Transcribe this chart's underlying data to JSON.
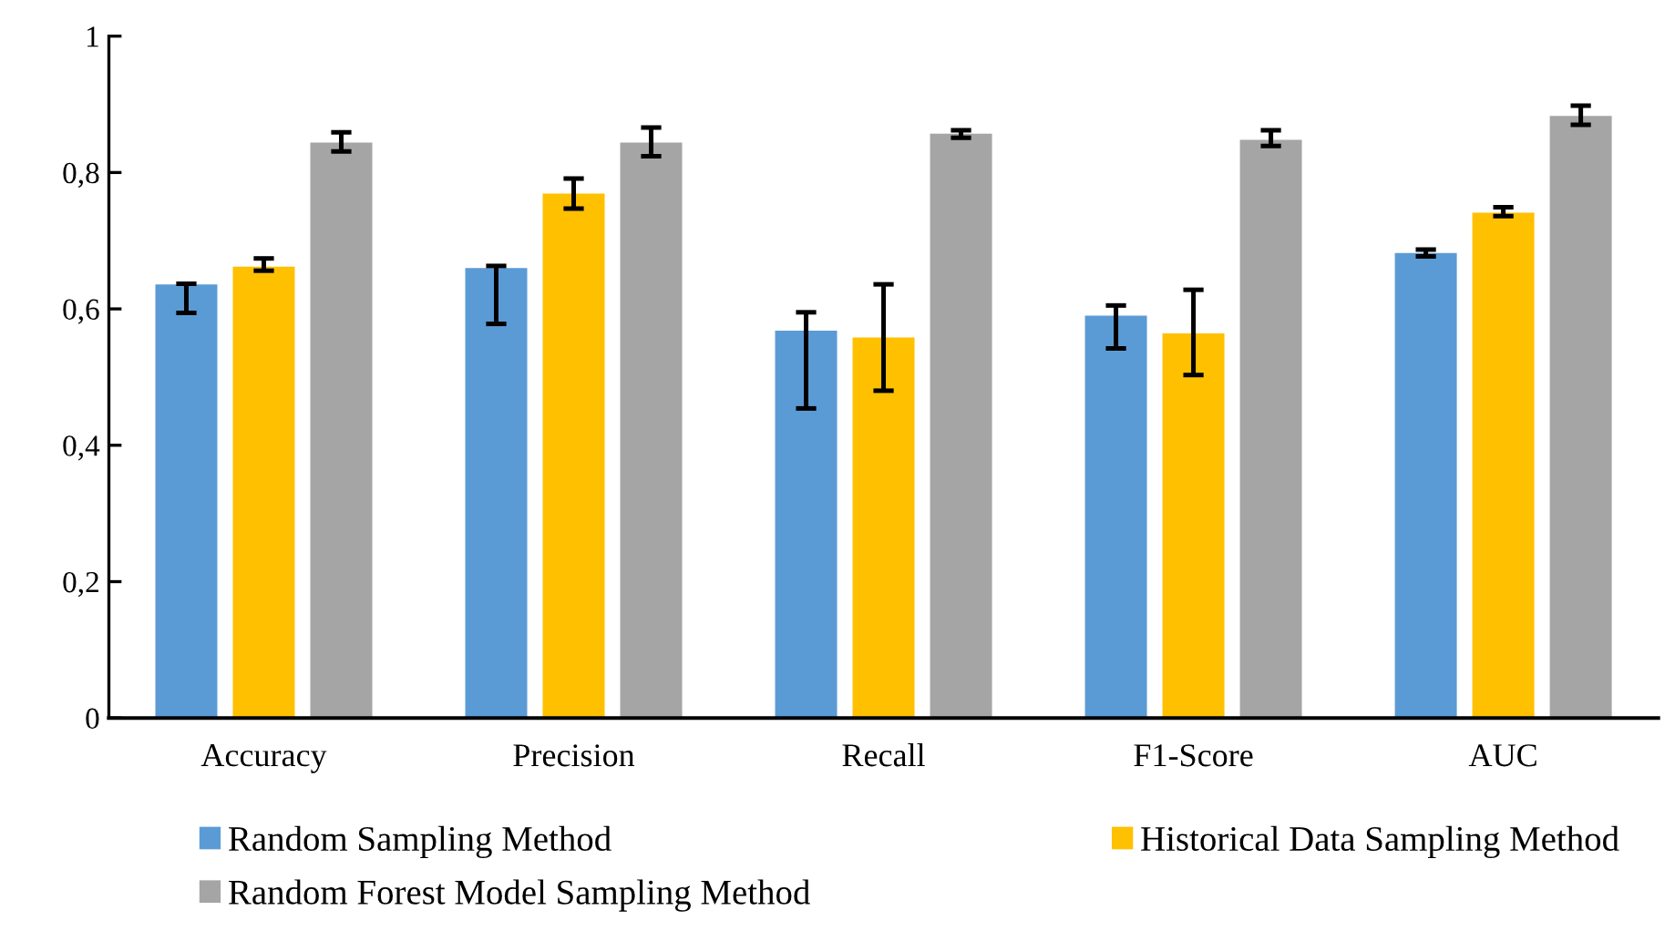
{
  "chart_data": {
    "type": "bar",
    "categories": [
      "Accuracy",
      "Precision",
      "Recall",
      "F1-Score",
      "AUC"
    ],
    "series": [
      {
        "name": "Random Sampling Method",
        "color": "#5b9bd5",
        "values": [
          0.636,
          0.66,
          0.568,
          0.59,
          0.682
        ],
        "errors": [
          [
            0.594,
            0.637
          ],
          [
            0.578,
            0.663
          ],
          [
            0.454,
            0.595
          ],
          [
            0.542,
            0.605
          ],
          [
            0.677,
            0.687
          ]
        ]
      },
      {
        "name": "Historical Data Sampling Method",
        "color": "#ffc000",
        "values": [
          0.662,
          0.769,
          0.558,
          0.564,
          0.741
        ],
        "errors": [
          [
            0.656,
            0.674
          ],
          [
            0.747,
            0.791
          ],
          [
            0.48,
            0.636
          ],
          [
            0.503,
            0.628
          ],
          [
            0.736,
            0.749
          ]
        ]
      },
      {
        "name": "Random Forest Model Sampling Method",
        "color": "#a5a5a5",
        "values": [
          0.844,
          0.844,
          0.857,
          0.848,
          0.883
        ],
        "errors": [
          [
            0.831,
            0.859
          ],
          [
            0.824,
            0.866
          ],
          [
            0.851,
            0.862
          ],
          [
            0.839,
            0.862
          ],
          [
            0.87,
            0.898
          ]
        ]
      }
    ],
    "ylim": [
      0,
      1
    ],
    "yticks": [
      0,
      {
        "value": 0.2,
        "label": "0,2"
      },
      {
        "value": 0.4,
        "label": "0,4"
      },
      {
        "value": 0.6,
        "label": "0,6"
      },
      {
        "value": 0.8,
        "label": "0,8"
      },
      1
    ],
    "grid": false,
    "legend": "bottom"
  }
}
